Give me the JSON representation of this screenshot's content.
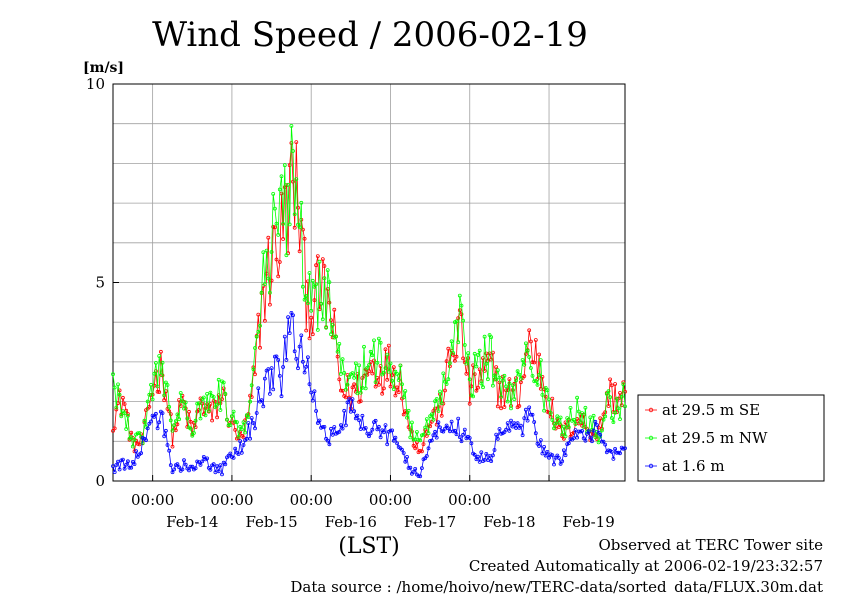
{
  "chart_data": {
    "type": "line",
    "title": "Wind Speed / 2006-02-19",
    "ylabel": "[m/s]",
    "xlabel": "(LST)",
    "ylim": [
      0,
      10
    ],
    "xlim": [
      "2006-02-13 12:00",
      "2006-02-19 23:00"
    ],
    "ytick_labels": [
      "0",
      "5",
      "10"
    ],
    "xtick_time_labels": [
      "00:00",
      "00:00",
      "00:00",
      "00:00",
      "00:00"
    ],
    "xtick_day_labels": [
      "Feb-14",
      "Feb-15",
      "Feb-16",
      "Feb-17",
      "Feb-18",
      "Feb-19"
    ],
    "grid": true,
    "legend_position": "right",
    "time_step_minutes": 30,
    "series": [
      {
        "name": "at 29.5 m SE",
        "color": "#ff0000",
        "anchors": [
          [
            "2006-02-13 12:00",
            1.6
          ],
          [
            "2006-02-13 15:00",
            2.1
          ],
          [
            "2006-02-13 18:00",
            0.9
          ],
          [
            "2006-02-13 21:00",
            1.0
          ],
          [
            "2006-02-14 00:00",
            2.4
          ],
          [
            "2006-02-14 03:00",
            2.9
          ],
          [
            "2006-02-14 06:00",
            1.1
          ],
          [
            "2006-02-14 09:00",
            2.0
          ],
          [
            "2006-02-14 12:00",
            1.2
          ],
          [
            "2006-02-14 15:00",
            2.0
          ],
          [
            "2006-02-14 18:00",
            1.6
          ],
          [
            "2006-02-14 21:00",
            2.2
          ],
          [
            "2006-02-15 00:00",
            1.4
          ],
          [
            "2006-02-15 03:00",
            1.0
          ],
          [
            "2006-02-15 06:00",
            2.0
          ],
          [
            "2006-02-15 09:00",
            4.5
          ],
          [
            "2006-02-15 12:00",
            5.6
          ],
          [
            "2006-02-15 15:00",
            6.2
          ],
          [
            "2006-02-15 18:00",
            7.4
          ],
          [
            "2006-02-15 20:00",
            7.2
          ],
          [
            "2006-02-15 22:00",
            5.0
          ],
          [
            "2006-02-16 00:00",
            4.4
          ],
          [
            "2006-02-16 03:00",
            4.8
          ],
          [
            "2006-02-16 06:00",
            4.2
          ],
          [
            "2006-02-16 09:00",
            2.3
          ],
          [
            "2006-02-16 12:00",
            2.2
          ],
          [
            "2006-02-16 15:00",
            2.4
          ],
          [
            "2006-02-16 18:00",
            2.9
          ],
          [
            "2006-02-16 21:00",
            2.8
          ],
          [
            "2006-02-17 00:00",
            2.9
          ],
          [
            "2006-02-17 03:00",
            2.6
          ],
          [
            "2006-02-17 06:00",
            1.2
          ],
          [
            "2006-02-17 09:00",
            0.8
          ],
          [
            "2006-02-17 12:00",
            1.5
          ],
          [
            "2006-02-17 15:00",
            1.8
          ],
          [
            "2006-02-17 18:00",
            3.0
          ],
          [
            "2006-02-17 21:00",
            3.9
          ],
          [
            "2006-02-18 00:00",
            2.3
          ],
          [
            "2006-02-18 03:00",
            2.6
          ],
          [
            "2006-02-18 06:00",
            2.9
          ],
          [
            "2006-02-18 09:00",
            2.3
          ],
          [
            "2006-02-18 12:00",
            2.2
          ],
          [
            "2006-02-18 15:00",
            2.2
          ],
          [
            "2006-02-18 18:00",
            3.5
          ],
          [
            "2006-02-18 21:00",
            2.9
          ],
          [
            "2006-02-19 00:00",
            2.0
          ],
          [
            "2006-02-19 03:00",
            1.2
          ],
          [
            "2006-02-19 06:00",
            1.3
          ],
          [
            "2006-02-19 09:00",
            1.6
          ],
          [
            "2006-02-19 12:00",
            1.3
          ],
          [
            "2006-02-19 15:00",
            1.2
          ],
          [
            "2006-02-19 18:00",
            2.2
          ],
          [
            "2006-02-19 21:00",
            2.1
          ],
          [
            "2006-02-19 23:00",
            2.3
          ]
        ]
      },
      {
        "name": "at 29.5 m NW",
        "color": "#00ff00",
        "anchors": [
          [
            "2006-02-13 12:00",
            2.3
          ],
          [
            "2006-02-13 15:00",
            2.0
          ],
          [
            "2006-02-13 18:00",
            1.0
          ],
          [
            "2006-02-13 21:00",
            1.1
          ],
          [
            "2006-02-14 00:00",
            2.5
          ],
          [
            "2006-02-14 03:00",
            3.0
          ],
          [
            "2006-02-14 06:00",
            1.2
          ],
          [
            "2006-02-14 09:00",
            2.1
          ],
          [
            "2006-02-14 12:00",
            1.4
          ],
          [
            "2006-02-14 15:00",
            2.1
          ],
          [
            "2006-02-14 18:00",
            1.8
          ],
          [
            "2006-02-14 21:00",
            2.3
          ],
          [
            "2006-02-15 00:00",
            1.5
          ],
          [
            "2006-02-15 03:00",
            1.1
          ],
          [
            "2006-02-15 06:00",
            2.2
          ],
          [
            "2006-02-15 09:00",
            4.8
          ],
          [
            "2006-02-15 12:00",
            5.9
          ],
          [
            "2006-02-15 15:00",
            6.4
          ],
          [
            "2006-02-15 18:00",
            8.0
          ],
          [
            "2006-02-15 20:00",
            7.4
          ],
          [
            "2006-02-15 22:00",
            5.2
          ],
          [
            "2006-02-16 00:00",
            4.6
          ],
          [
            "2006-02-16 03:00",
            4.9
          ],
          [
            "2006-02-16 06:00",
            4.3
          ],
          [
            "2006-02-16 09:00",
            2.6
          ],
          [
            "2006-02-16 12:00",
            2.4
          ],
          [
            "2006-02-16 15:00",
            2.6
          ],
          [
            "2006-02-16 18:00",
            3.2
          ],
          [
            "2006-02-16 21:00",
            3.0
          ],
          [
            "2006-02-17 00:00",
            3.0
          ],
          [
            "2006-02-17 03:00",
            2.7
          ],
          [
            "2006-02-17 06:00",
            1.3
          ],
          [
            "2006-02-17 09:00",
            0.9
          ],
          [
            "2006-02-17 12:00",
            1.6
          ],
          [
            "2006-02-17 15:00",
            2.0
          ],
          [
            "2006-02-17 18:00",
            3.2
          ],
          [
            "2006-02-17 21:00",
            3.9
          ],
          [
            "2006-02-18 00:00",
            2.5
          ],
          [
            "2006-02-18 03:00",
            2.8
          ],
          [
            "2006-02-18 06:00",
            3.2
          ],
          [
            "2006-02-18 09:00",
            2.4
          ],
          [
            "2006-02-18 12:00",
            2.3
          ],
          [
            "2006-02-18 15:00",
            2.3
          ],
          [
            "2006-02-18 18:00",
            3.6
          ],
          [
            "2006-02-18 21:00",
            2.7
          ],
          [
            "2006-02-19 00:00",
            1.8
          ],
          [
            "2006-02-19 03:00",
            1.3
          ],
          [
            "2006-02-19 06:00",
            1.5
          ],
          [
            "2006-02-19 09:00",
            1.8
          ],
          [
            "2006-02-19 12:00",
            1.5
          ],
          [
            "2006-02-19 15:00",
            1.2
          ],
          [
            "2006-02-19 18:00",
            2.0
          ],
          [
            "2006-02-19 21:00",
            1.7
          ],
          [
            "2006-02-19 23:00",
            2.4
          ]
        ]
      },
      {
        "name": "at 1.6 m",
        "color": "#0000ff",
        "anchors": [
          [
            "2006-02-13 12:00",
            0.3
          ],
          [
            "2006-02-13 15:00",
            0.4
          ],
          [
            "2006-02-13 18:00",
            0.5
          ],
          [
            "2006-02-13 21:00",
            0.9
          ],
          [
            "2006-02-14 00:00",
            1.4
          ],
          [
            "2006-02-14 03:00",
            1.6
          ],
          [
            "2006-02-14 06:00",
            0.3
          ],
          [
            "2006-02-14 09:00",
            0.4
          ],
          [
            "2006-02-14 12:00",
            0.3
          ],
          [
            "2006-02-14 15:00",
            0.5
          ],
          [
            "2006-02-14 18:00",
            0.4
          ],
          [
            "2006-02-14 21:00",
            0.3
          ],
          [
            "2006-02-15 00:00",
            0.6
          ],
          [
            "2006-02-15 03:00",
            0.9
          ],
          [
            "2006-02-15 06:00",
            1.4
          ],
          [
            "2006-02-15 09:00",
            2.2
          ],
          [
            "2006-02-15 12:00",
            2.7
          ],
          [
            "2006-02-15 15:00",
            2.7
          ],
          [
            "2006-02-15 18:00",
            3.9
          ],
          [
            "2006-02-15 20:00",
            3.6
          ],
          [
            "2006-02-15 22:00",
            2.8
          ],
          [
            "2006-02-16 00:00",
            2.4
          ],
          [
            "2006-02-16 03:00",
            1.5
          ],
          [
            "2006-02-16 06:00",
            1.1
          ],
          [
            "2006-02-16 09:00",
            1.3
          ],
          [
            "2006-02-16 12:00",
            1.8
          ],
          [
            "2006-02-16 15:00",
            1.5
          ],
          [
            "2006-02-16 18:00",
            1.2
          ],
          [
            "2006-02-16 21:00",
            1.3
          ],
          [
            "2006-02-17 00:00",
            1.1
          ],
          [
            "2006-02-17 03:00",
            0.8
          ],
          [
            "2006-02-17 06:00",
            0.3
          ],
          [
            "2006-02-17 09:00",
            0.2
          ],
          [
            "2006-02-17 12:00",
            0.9
          ],
          [
            "2006-02-17 15:00",
            1.3
          ],
          [
            "2006-02-17 18:00",
            1.4
          ],
          [
            "2006-02-17 21:00",
            1.3
          ],
          [
            "2006-02-18 00:00",
            0.9
          ],
          [
            "2006-02-18 03:00",
            0.6
          ],
          [
            "2006-02-18 06:00",
            0.5
          ],
          [
            "2006-02-18 09:00",
            1.2
          ],
          [
            "2006-02-18 12:00",
            1.3
          ],
          [
            "2006-02-18 15:00",
            1.3
          ],
          [
            "2006-02-18 18:00",
            1.7
          ],
          [
            "2006-02-18 21:00",
            1.0
          ],
          [
            "2006-02-19 00:00",
            0.6
          ],
          [
            "2006-02-19 03:00",
            0.5
          ],
          [
            "2006-02-19 06:00",
            0.9
          ],
          [
            "2006-02-19 09:00",
            1.2
          ],
          [
            "2006-02-19 12:00",
            1.1
          ],
          [
            "2006-02-19 15:00",
            1.3
          ],
          [
            "2006-02-19 18:00",
            0.8
          ],
          [
            "2006-02-19 21:00",
            0.6
          ],
          [
            "2006-02-19 23:00",
            0.8
          ]
        ]
      }
    ]
  },
  "footer": {
    "observed": "Observed at TERC Tower site",
    "created": "Created Automatically at 2006-02-19/23:32:57",
    "source": "Data source : /home/hoivo/new/TERC-data/sorted_data/FLUX.30m.dat"
  }
}
